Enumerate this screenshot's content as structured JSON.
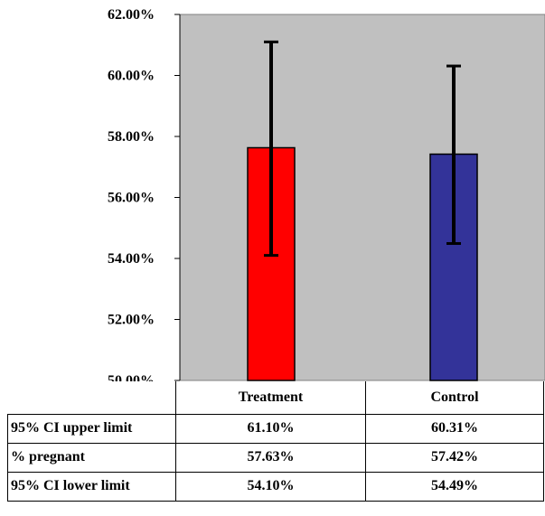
{
  "chart_data": {
    "type": "bar",
    "categories": [
      "Treatment",
      "Control"
    ],
    "series": [
      {
        "name": "% pregnant",
        "values": [
          57.63,
          57.42
        ],
        "colors": [
          "#ff0000",
          "#333399"
        ]
      }
    ],
    "error_bars": {
      "upper": [
        61.1,
        60.31
      ],
      "lower": [
        54.1,
        54.49
      ]
    },
    "ylim": [
      50,
      62
    ],
    "y_ticks": [
      "50.00%",
      "52.00%",
      "54.00%",
      "56.00%",
      "58.00%",
      "60.00%",
      "62.00%"
    ],
    "tick_values": [
      50,
      52,
      54,
      56,
      58,
      60,
      62
    ],
    "plot_background": "#c0c0c0",
    "grid": false
  },
  "table": {
    "columns": [
      "Treatment",
      "Control"
    ],
    "rows": [
      {
        "label": "95% CI upper limit",
        "values": [
          "61.10%",
          "60.31%"
        ]
      },
      {
        "label": "% pregnant",
        "values": [
          "57.63%",
          "57.42%"
        ]
      },
      {
        "label": "95% CI lower limit",
        "values": [
          "54.10%",
          "54.49%"
        ]
      }
    ]
  }
}
